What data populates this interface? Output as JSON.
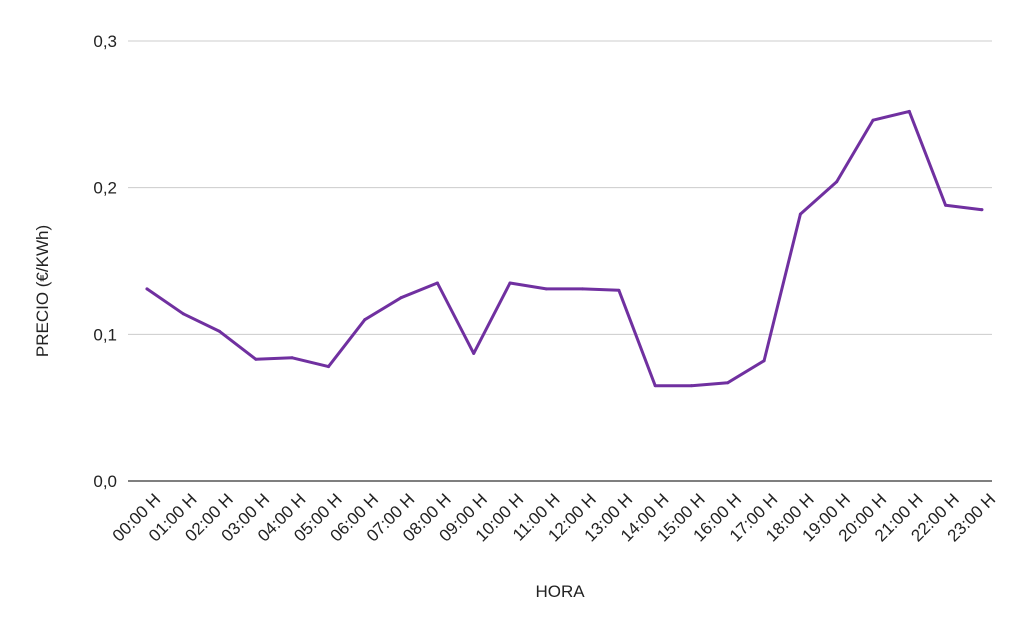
{
  "chart_data": {
    "type": "line",
    "title": "",
    "xlabel": "HORA",
    "ylabel": "PRECIO (€/KWh)",
    "categories": [
      "00:00 H",
      "01:00 H",
      "02:00 H",
      "03:00 H",
      "04:00 H",
      "05:00 H",
      "06:00 H",
      "07:00 H",
      "08:00 H",
      "09:00 H",
      "10:00 H",
      "11:00 H",
      "12:00 H",
      "13:00 H",
      "14:00 H",
      "15:00 H",
      "16:00 H",
      "17:00 H",
      "18:00 H",
      "19:00 H",
      "20:00 H",
      "21:00 H",
      "22:00 H",
      "23:00 H"
    ],
    "series": [
      {
        "color": "#7030a0",
        "values": [
          0.131,
          0.114,
          0.102,
          0.083,
          0.084,
          0.078,
          0.11,
          0.125,
          0.135,
          0.087,
          0.135,
          0.131,
          0.131,
          0.13,
          0.065,
          0.065,
          0.067,
          0.082,
          0.182,
          0.204,
          0.246,
          0.252,
          0.188,
          0.185
        ]
      }
    ],
    "yticks": [
      "0,0",
      "0,1",
      "0,2",
      "0,3"
    ],
    "ylim": [
      0,
      0.3
    ],
    "grid": true,
    "legend": "none"
  }
}
